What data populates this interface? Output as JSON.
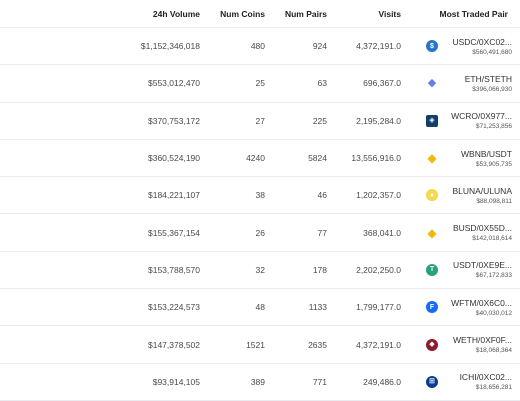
{
  "columns": {
    "volume": "24h Volume",
    "coins": "Num Coins",
    "pairs": "Num Pairs",
    "visits": "Visits",
    "pair": "Most Traded Pair"
  },
  "rows": [
    {
      "volume": "$1,152,346,018",
      "coins": "480",
      "pairs": "924",
      "visits": "4,372,191.0",
      "pair": "USDC/0XC02...",
      "pair_volume": "$560,491,680",
      "icon": "usdc-coin-icon",
      "glyph": "$"
    },
    {
      "volume": "$553,012,470",
      "coins": "25",
      "pairs": "63",
      "visits": "696,367.0",
      "pair": "ETH/STETH",
      "pair_volume": "$396,066,930",
      "icon": "ethereum-icon",
      "glyph": "◆"
    },
    {
      "volume": "$370,753,172",
      "coins": "27",
      "pairs": "225",
      "visits": "2,195,284.0",
      "pair": "WCRO/0X977...",
      "pair_volume": "$71,253,856",
      "icon": "cronos-icon",
      "glyph": "◈"
    },
    {
      "volume": "$360,524,190",
      "coins": "4240",
      "pairs": "5824",
      "visits": "13,556,916.0",
      "pair": "WBNB/USDT",
      "pair_volume": "$53,905,735",
      "icon": "bnb-icon",
      "glyph": "◆"
    },
    {
      "volume": "$184,221,107",
      "coins": "38",
      "pairs": "46",
      "visits": "1,202,357.0",
      "pair": "BLUNA/ULUNA",
      "pair_volume": "$88,098,811",
      "icon": "bluna-icon",
      "glyph": "●"
    },
    {
      "volume": "$155,367,154",
      "coins": "26",
      "pairs": "77",
      "visits": "368,041.0",
      "pair": "BUSD/0X55D...",
      "pair_volume": "$142,018,614",
      "icon": "busd-icon",
      "glyph": "◆"
    },
    {
      "volume": "$153,788,570",
      "coins": "32",
      "pairs": "178",
      "visits": "2,202,250.0",
      "pair": "USDT/0XE9E...",
      "pair_volume": "$67,172,833",
      "icon": "tether-icon",
      "glyph": "T"
    },
    {
      "volume": "$153,224,573",
      "coins": "48",
      "pairs": "1133",
      "visits": "1,799,177.0",
      "pair": "WFTM/0X6C0...",
      "pair_volume": "$40,030,012",
      "icon": "fantom-icon",
      "glyph": "F"
    },
    {
      "volume": "$147,378,502",
      "coins": "1521",
      "pairs": "2635",
      "visits": "4,372,191.0",
      "pair": "WETH/0XF0F...",
      "pair_volume": "$18,068,364",
      "icon": "weth-icon",
      "glyph": "◆"
    },
    {
      "volume": "$93,914,105",
      "coins": "389",
      "pairs": "771",
      "visits": "249,486.0",
      "pair": "ICHI/0XC02...",
      "pair_volume": "$18,656,281",
      "icon": "ichi-icon",
      "glyph": "⊞"
    }
  ]
}
